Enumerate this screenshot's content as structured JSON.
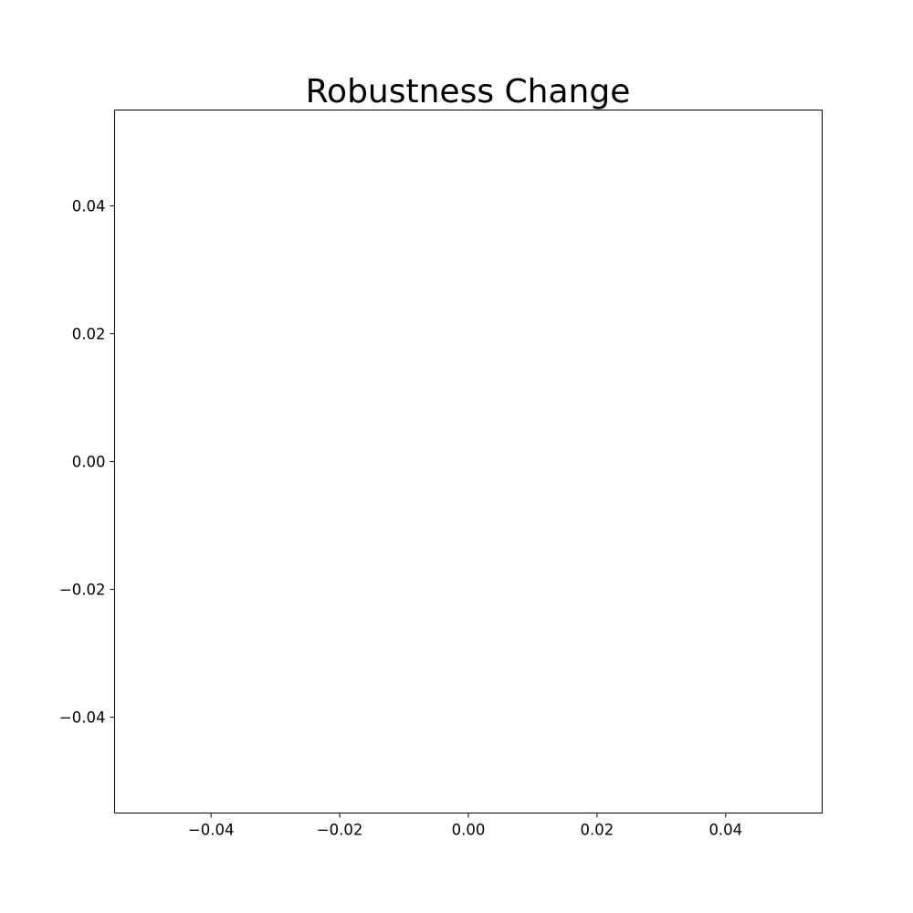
{
  "chart_data": {
    "type": "scatter",
    "title": "Robustness Change",
    "xlabel": "",
    "ylabel": "",
    "xlim": [
      -0.055,
      0.055
    ],
    "ylim": [
      -0.055,
      0.055
    ],
    "x_ticks": [
      -0.04,
      -0.02,
      0.0,
      0.02,
      0.04
    ],
    "y_ticks": [
      -0.04,
      -0.02,
      0.0,
      0.02,
      0.04
    ],
    "x_tick_labels": [
      "−0.04",
      "−0.02",
      "0.00",
      "0.02",
      "0.04"
    ],
    "y_tick_labels": [
      "−0.04",
      "−0.02",
      "0.00",
      "0.02",
      "0.04"
    ],
    "series": [],
    "grid": false,
    "legend": "none",
    "colors": {
      "frame": "#000000",
      "background": "#ffffff",
      "text": "#000000"
    }
  }
}
